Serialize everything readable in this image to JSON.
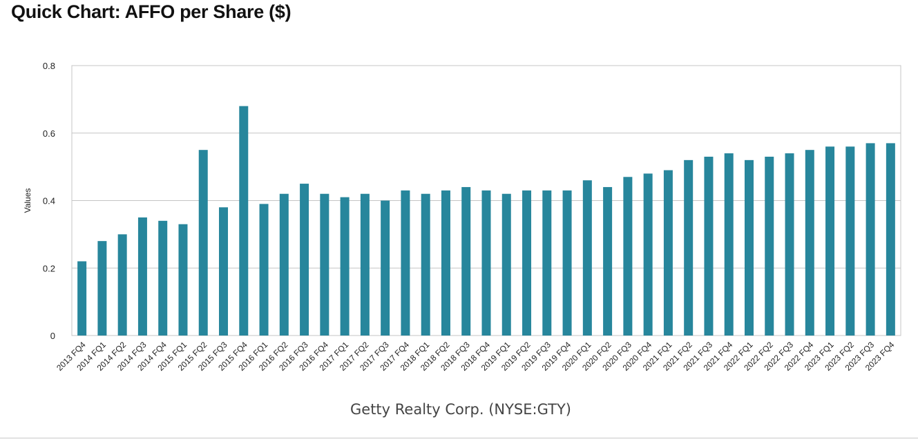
{
  "page": {
    "title": "Quick Chart: AFFO per Share ($)"
  },
  "colors": {
    "bar": "#27869c",
    "grid": "#c4c4c4",
    "frame": "#c4c4c4",
    "text": "#222222",
    "footer_text": "#444444"
  },
  "chart_data": {
    "type": "bar",
    "title": "",
    "xlabel": "Getty Realty Corp. (NYSE:GTY)",
    "ylabel": "Values",
    "ylim": [
      0,
      0.8
    ],
    "yticks": [
      0,
      0.2,
      0.4,
      0.6,
      0.8
    ],
    "ytick_labels": [
      "0",
      "0.2",
      "0.4",
      "0.6",
      "0.8"
    ],
    "grid": true,
    "legend": "none",
    "categories": [
      "2013 FQ4",
      "2014 FQ1",
      "2014 FQ2",
      "2014 FQ3",
      "2014 FQ4",
      "2015 FQ1",
      "2015 FQ2",
      "2015 FQ3",
      "2015 FQ4",
      "2016 FQ1",
      "2016 FQ2",
      "2016 FQ3",
      "2016 FQ4",
      "2017 FQ1",
      "2017 FQ2",
      "2017 FQ3",
      "2017 FQ4",
      "2018 FQ1",
      "2018 FQ2",
      "2018 FQ3",
      "2018 FQ4",
      "2019 FQ1",
      "2019 FQ2",
      "2019 FQ3",
      "2019 FQ4",
      "2020 FQ1",
      "2020 FQ2",
      "2020 FQ3",
      "2020 FQ4",
      "2021 FQ1",
      "2021 FQ2",
      "2021 FQ3",
      "2021 FQ4",
      "2022 FQ1",
      "2022 FQ2",
      "2022 FQ3",
      "2022 FQ4",
      "2023 FQ1",
      "2023 FQ2",
      "2023 FQ3",
      "2023 FQ4"
    ],
    "values": [
      0.22,
      0.28,
      0.3,
      0.35,
      0.34,
      0.33,
      0.55,
      0.38,
      0.68,
      0.39,
      0.42,
      0.45,
      0.42,
      0.41,
      0.42,
      0.4,
      0.43,
      0.42,
      0.43,
      0.44,
      0.43,
      0.42,
      0.43,
      0.43,
      0.43,
      0.46,
      0.44,
      0.47,
      0.48,
      0.49,
      0.52,
      0.53,
      0.54,
      0.52,
      0.53,
      0.54,
      0.55,
      0.56,
      0.56,
      0.57,
      0.57
    ]
  }
}
